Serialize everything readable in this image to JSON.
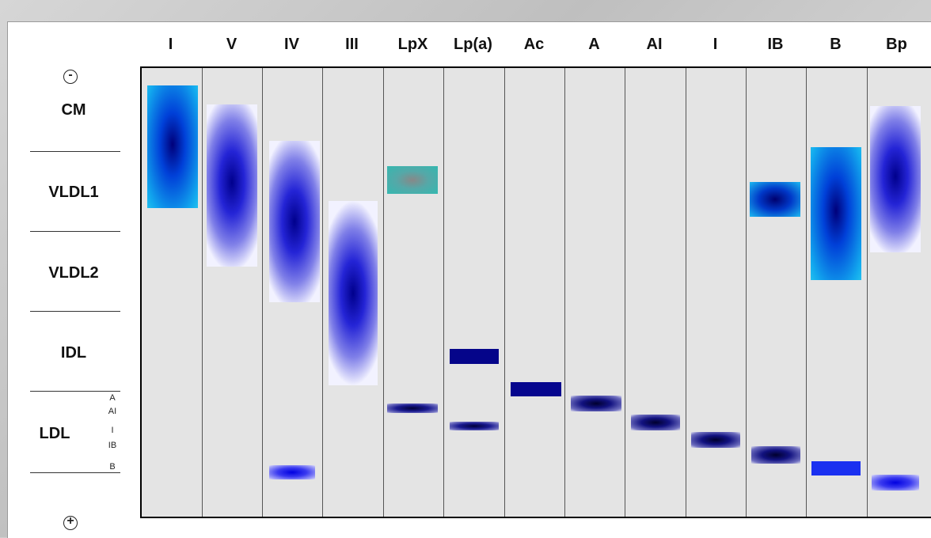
{
  "lanes": [
    "I",
    "V",
    "IV",
    "III",
    "LpX",
    "Lp(a)",
    "Ac",
    "A",
    "AI",
    "I",
    "IB",
    "B",
    "Bp"
  ],
  "rows": {
    "cm": "CM",
    "vldl1": "VLDL1",
    "vldl2": "VLDL2",
    "idl": "IDL",
    "ldl": "LDL"
  },
  "ldl_subclasses": [
    "A",
    "AI",
    "I",
    "IB",
    "B"
  ],
  "poles": {
    "top": "-",
    "bottom": "+"
  },
  "colors": {
    "deep_blue": "#00008c",
    "mid_blue": "#1a1ae6",
    "cyan": "#22b8ee",
    "teal": "#3ab8b0",
    "lavender": "#f0f0ff",
    "gel": "#e4e4e4"
  }
}
